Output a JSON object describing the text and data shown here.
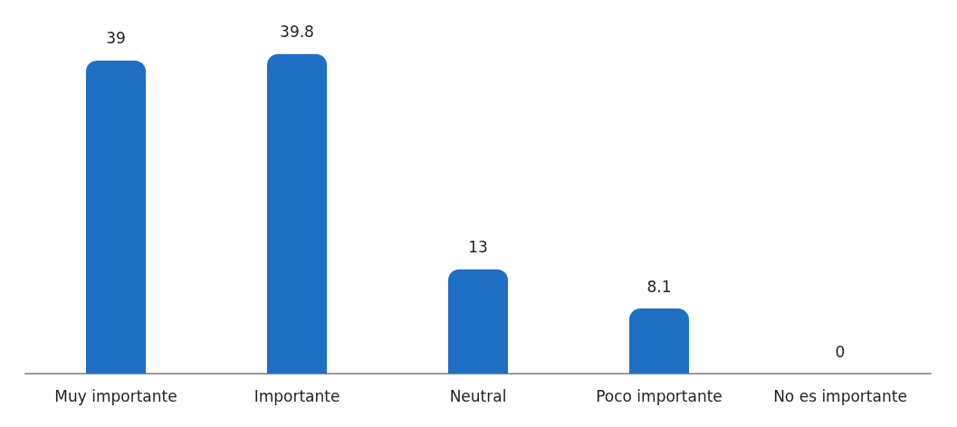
{
  "chart_data": {
    "type": "bar",
    "categories": [
      "Muy importante",
      "Importante",
      "Neutral",
      "Poco importante",
      "No es importante"
    ],
    "values": [
      39,
      39.8,
      13,
      8.1,
      0
    ],
    "color": "#1f6fc5",
    "data_labels": true
  }
}
